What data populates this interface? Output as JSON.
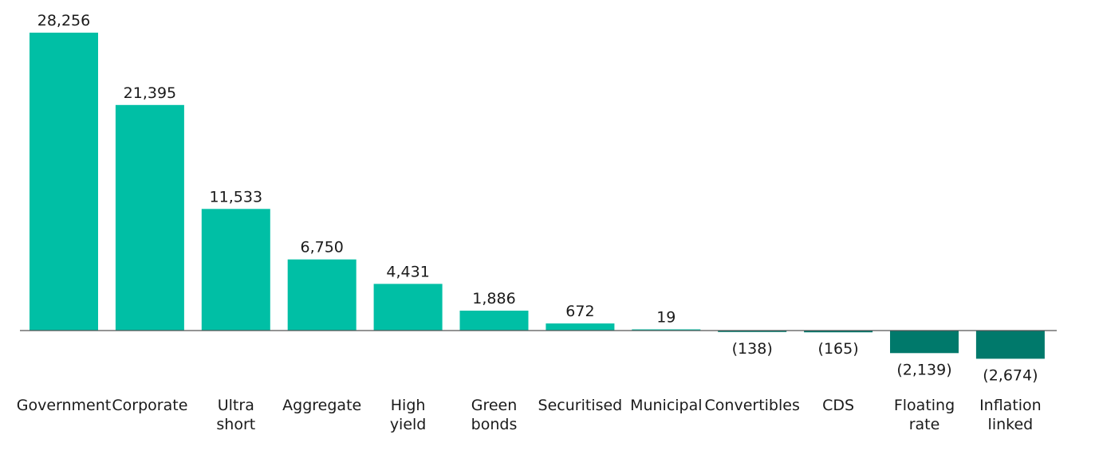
{
  "chart_data": {
    "type": "bar",
    "title": "",
    "xlabel": "",
    "ylabel": "",
    "categories": [
      [
        "Government"
      ],
      [
        "Corporate"
      ],
      [
        "Ultra",
        "short"
      ],
      [
        "Aggregate"
      ],
      [
        "High",
        "yield"
      ],
      [
        "Green",
        "bonds"
      ],
      [
        "Securitised"
      ],
      [
        "Municipal"
      ],
      [
        "Convertibles"
      ],
      [
        "CDS"
      ],
      [
        "Floating",
        "rate"
      ],
      [
        "Inflation",
        "linked"
      ]
    ],
    "values": [
      28256,
      21395,
      11533,
      6750,
      4431,
      1886,
      672,
      19,
      -138,
      -165,
      -2139,
      -2674
    ],
    "value_labels": [
      "28,256",
      "21,395",
      "11,533",
      "6,750",
      "4,431",
      "1,886",
      "672",
      "19",
      "(138)",
      "(165)",
      "(2,139)",
      "(2,674)"
    ],
    "colors": {
      "positive": "#00BFA5",
      "negative": "#00796B",
      "axis": "#555555"
    },
    "grid": false,
    "legend": "none"
  }
}
